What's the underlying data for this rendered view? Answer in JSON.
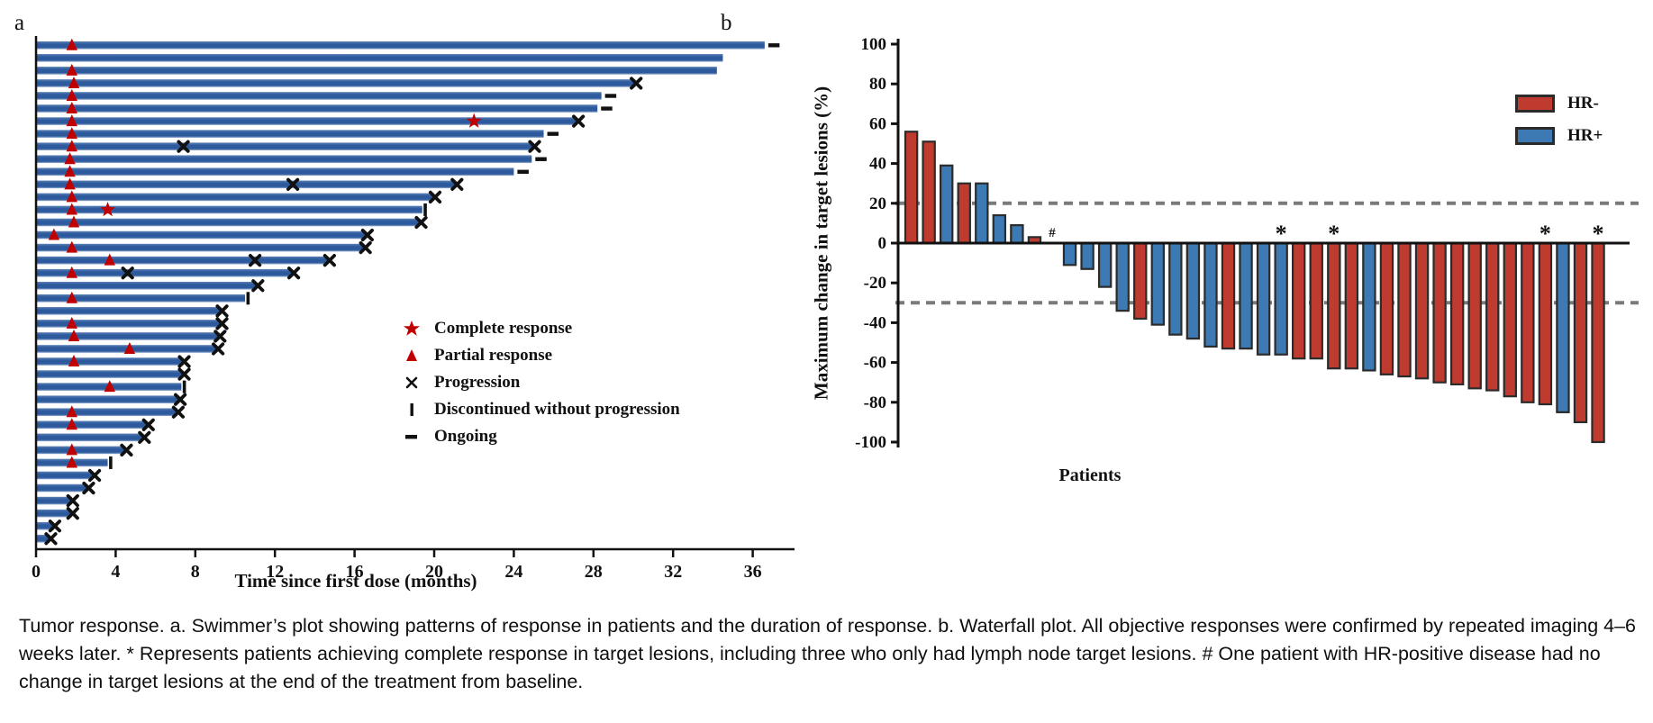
{
  "caption": "Tumor response. a. Swimmer’s plot showing patterns of response in patients and the duration of response. b. Waterfall plot. All objective responses were confirmed by repeated imaging 4–6 weeks later. * Represents patients achieving complete response in target lesions, including three who only had lymph node target lesions. # One patient with HR-positive disease had no change in target lesions at the end of the treatment from baseline.",
  "chart_data": [
    {
      "id": "swimmer_plot",
      "type": "bar",
      "orientation": "horizontal",
      "panel_label": "a",
      "xlabel": "Time since first dose (months)",
      "x_ticks": [
        0,
        4,
        8,
        12,
        16,
        20,
        24,
        28,
        32,
        36
      ],
      "xlim": [
        0,
        38.2
      ],
      "bar_color": "#2d5a9d",
      "marker_color": "#c00000",
      "legend": [
        {
          "icon": "star",
          "label": "Complete response"
        },
        {
          "icon": "triangle",
          "label": "Partial response"
        },
        {
          "icon": "x",
          "label": "Progression"
        },
        {
          "icon": "tick",
          "label": "Discontinued without progression"
        },
        {
          "icon": "dash",
          "label": "Ongoing"
        }
      ],
      "event_types": {
        "PR": "Partial response",
        "CR": "Complete response",
        "X": "Progression"
      },
      "patients": [
        {
          "duration": 36.6,
          "end": "ongoing",
          "events": [
            {
              "type": "PR",
              "month": 1.8
            }
          ]
        },
        {
          "duration": 34.5,
          "end": "none",
          "events": []
        },
        {
          "duration": 34.2,
          "end": "none",
          "events": [
            {
              "type": "PR",
              "month": 1.8
            }
          ]
        },
        {
          "duration": 30.1,
          "end": "progression",
          "events": [
            {
              "type": "PR",
              "month": 1.9
            }
          ]
        },
        {
          "duration": 28.4,
          "end": "ongoing",
          "events": [
            {
              "type": "PR",
              "month": 1.8
            }
          ]
        },
        {
          "duration": 28.2,
          "end": "ongoing",
          "events": [
            {
              "type": "PR",
              "month": 1.8
            }
          ]
        },
        {
          "duration": 27.2,
          "end": "progression",
          "events": [
            {
              "type": "PR",
              "month": 1.8
            },
            {
              "type": "CR",
              "month": 22.0
            }
          ]
        },
        {
          "duration": 25.5,
          "end": "ongoing",
          "events": [
            {
              "type": "PR",
              "month": 1.8
            }
          ]
        },
        {
          "duration": 25.0,
          "end": "progression",
          "events": [
            {
              "type": "PR",
              "month": 1.8
            },
            {
              "type": "X",
              "month": 7.4
            }
          ]
        },
        {
          "duration": 24.9,
          "end": "ongoing",
          "events": [
            {
              "type": "PR",
              "month": 1.7
            }
          ]
        },
        {
          "duration": 24.0,
          "end": "ongoing",
          "events": [
            {
              "type": "PR",
              "month": 1.7
            }
          ]
        },
        {
          "duration": 21.1,
          "end": "progression",
          "events": [
            {
              "type": "PR",
              "month": 1.7
            },
            {
              "type": "X",
              "month": 12.9
            }
          ]
        },
        {
          "duration": 20.0,
          "end": "progression",
          "events": [
            {
              "type": "PR",
              "month": 1.8
            }
          ]
        },
        {
          "duration": 19.4,
          "end": "discontinued",
          "events": [
            {
              "type": "PR",
              "month": 1.8
            },
            {
              "type": "CR",
              "month": 3.6
            }
          ]
        },
        {
          "duration": 19.3,
          "end": "progression",
          "events": [
            {
              "type": "PR",
              "month": 1.9
            }
          ]
        },
        {
          "duration": 16.6,
          "end": "progression",
          "events": [
            {
              "type": "PR",
              "month": 0.9
            }
          ]
        },
        {
          "duration": 16.5,
          "end": "progression",
          "events": [
            {
              "type": "PR",
              "month": 1.8
            }
          ]
        },
        {
          "duration": 14.7,
          "end": "progression",
          "events": [
            {
              "type": "PR",
              "month": 3.7
            },
            {
              "type": "X",
              "month": 11.0
            }
          ]
        },
        {
          "duration": 12.9,
          "end": "progression",
          "events": [
            {
              "type": "PR",
              "month": 1.8
            },
            {
              "type": "X",
              "month": 4.6
            }
          ]
        },
        {
          "duration": 11.1,
          "end": "progression",
          "events": []
        },
        {
          "duration": 10.5,
          "end": "discontinued",
          "events": [
            {
              "type": "PR",
              "month": 1.8
            }
          ]
        },
        {
          "duration": 9.3,
          "end": "progression",
          "events": []
        },
        {
          "duration": 9.3,
          "end": "progression",
          "events": [
            {
              "type": "PR",
              "month": 1.8
            }
          ]
        },
        {
          "duration": 9.2,
          "end": "progression",
          "events": [
            {
              "type": "PR",
              "month": 1.9
            }
          ]
        },
        {
          "duration": 9.1,
          "end": "progression",
          "events": [
            {
              "type": "PR",
              "month": 4.7
            }
          ]
        },
        {
          "duration": 7.4,
          "end": "progression",
          "events": [
            {
              "type": "PR",
              "month": 1.9
            }
          ]
        },
        {
          "duration": 7.4,
          "end": "progression",
          "events": []
        },
        {
          "duration": 7.3,
          "end": "discontinued",
          "events": [
            {
              "type": "PR",
              "month": 3.7
            }
          ]
        },
        {
          "duration": 7.2,
          "end": "progression",
          "events": []
        },
        {
          "duration": 7.1,
          "end": "progression",
          "events": [
            {
              "type": "PR",
              "month": 1.8
            }
          ]
        },
        {
          "duration": 5.6,
          "end": "progression",
          "events": [
            {
              "type": "PR",
              "month": 1.8
            }
          ]
        },
        {
          "duration": 5.4,
          "end": "progression",
          "events": []
        },
        {
          "duration": 4.5,
          "end": "progression",
          "events": [
            {
              "type": "PR",
              "month": 1.8
            }
          ]
        },
        {
          "duration": 3.6,
          "end": "discontinued",
          "events": [
            {
              "type": "PR",
              "month": 1.8
            }
          ]
        },
        {
          "duration": 2.9,
          "end": "progression",
          "events": []
        },
        {
          "duration": 2.6,
          "end": "progression",
          "events": []
        },
        {
          "duration": 1.8,
          "end": "progression",
          "events": []
        },
        {
          "duration": 1.8,
          "end": "progression",
          "events": []
        },
        {
          "duration": 0.9,
          "end": "progression",
          "events": []
        },
        {
          "duration": 0.7,
          "end": "progression",
          "events": []
        }
      ]
    },
    {
      "id": "waterfall_plot",
      "type": "bar",
      "panel_label": "b",
      "ylabel": "Maximum change in target lesions (%)",
      "xlabel": "Patients",
      "ylim": [
        -100,
        100
      ],
      "y_ticks": [
        100,
        80,
        60,
        40,
        20,
        0,
        -20,
        -40,
        -60,
        -80,
        -100
      ],
      "reference_lines": [
        20,
        -30
      ],
      "values": [
        56,
        51,
        39,
        30,
        30,
        14,
        9,
        3,
        0,
        -11,
        -13,
        -22,
        -34,
        -38,
        -41,
        -46,
        -48,
        -52,
        -53,
        -53,
        -56,
        -56,
        -58,
        -58,
        -63,
        -63,
        -64,
        -66,
        -67,
        -68,
        -70,
        -71,
        -73,
        -74,
        -77,
        -80,
        -81,
        -85,
        -90,
        -100
      ],
      "groups": [
        "HR-",
        "HR-",
        "HR+",
        "HR-",
        "HR+",
        "HR+",
        "HR+",
        "HR-",
        "HR+",
        "HR+",
        "HR+",
        "HR+",
        "HR+",
        "HR-",
        "HR+",
        "HR+",
        "HR+",
        "HR+",
        "HR-",
        "HR+",
        "HR+",
        "HR+",
        "HR-",
        "HR-",
        "HR-",
        "HR-",
        "HR+",
        "HR-",
        "HR-",
        "HR-",
        "HR-",
        "HR-",
        "HR-",
        "HR-",
        "HR-",
        "HR-",
        "HR-",
        "HR+",
        "HR-",
        "HR-"
      ],
      "annotations": [
        {
          "index": 8,
          "text": "#"
        },
        {
          "index": 21,
          "text": "*"
        },
        {
          "index": 24,
          "text": "*"
        },
        {
          "index": 36,
          "text": "*"
        },
        {
          "index": 39,
          "text": "*"
        }
      ],
      "legend": [
        {
          "label": "HR-",
          "color": "#bf3b30"
        },
        {
          "label": "HR+",
          "color": "#3d7ab3"
        }
      ],
      "reference_line_color": "#7a7a7a"
    }
  ]
}
